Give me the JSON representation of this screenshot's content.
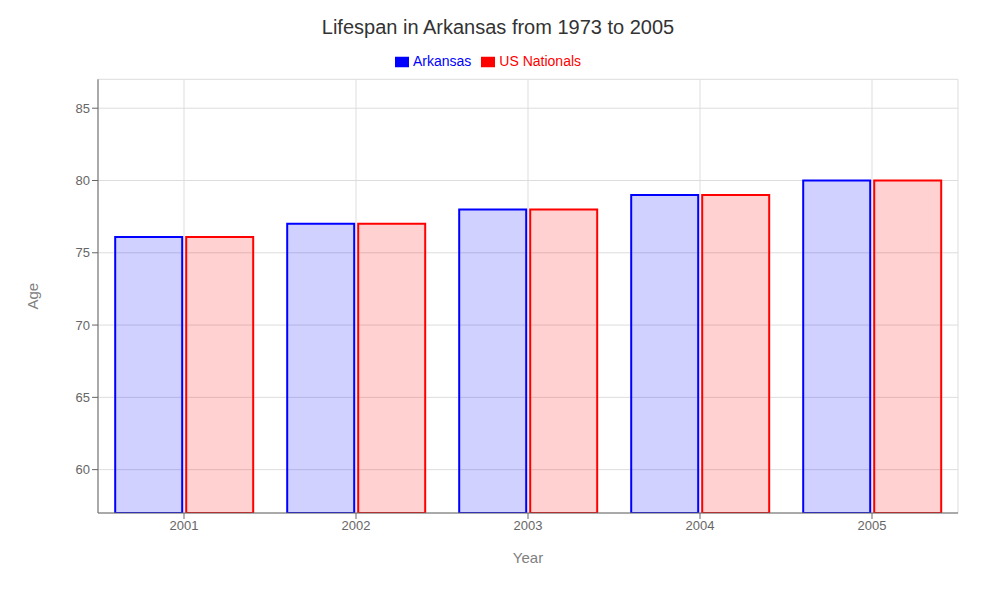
{
  "chart_data": {
    "type": "bar",
    "title": "Lifespan in Arkansas from 1973 to 2005",
    "x_label": "Year",
    "y_label": "Age",
    "categories": [
      "2001",
      "2002",
      "2003",
      "2004",
      "2005"
    ],
    "series": [
      {
        "name": "Arkansas",
        "color": "#0000ff",
        "values": [
          76.1,
          77.0,
          78.0,
          79.0,
          80.0
        ]
      },
      {
        "name": "US Nationals",
        "color": "#ff0000",
        "values": [
          76.1,
          77.0,
          78.0,
          79.0,
          80.0
        ]
      }
    ],
    "ylim": [
      57,
      87
    ],
    "yticks": [
      60,
      65,
      70,
      75,
      80,
      85
    ],
    "grid": true,
    "legend": "top"
  }
}
